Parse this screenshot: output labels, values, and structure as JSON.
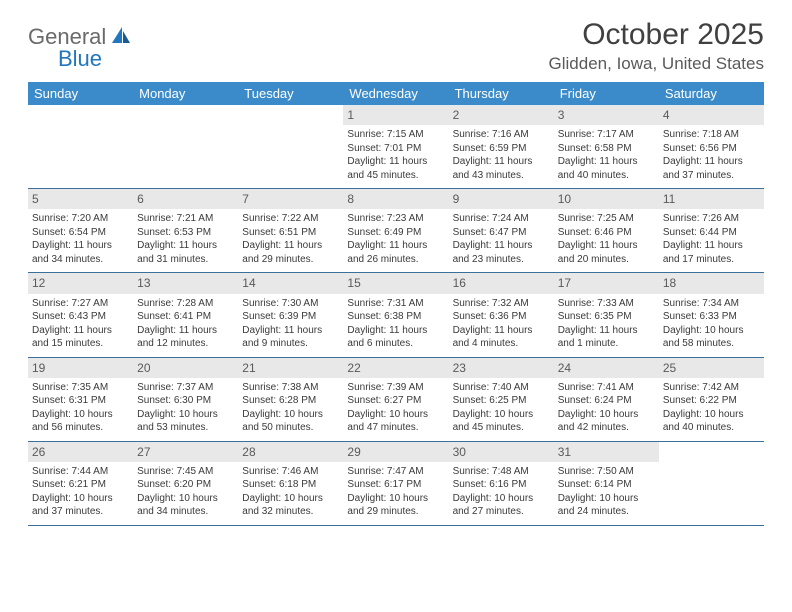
{
  "logo": {
    "general": "General",
    "blue": "Blue"
  },
  "title": "October 2025",
  "location": "Glidden, Iowa, United States",
  "colors": {
    "header_bg": "#3b8bca",
    "header_text": "#ffffff",
    "daynum_bg": "#e8e8e8",
    "daynum_text": "#5a5a5a",
    "border": "#3b6f9c",
    "text": "#3a3a3a",
    "logo_gray": "#6a6a6a",
    "logo_blue": "#2176bd"
  },
  "day_headers": [
    "Sunday",
    "Monday",
    "Tuesday",
    "Wednesday",
    "Thursday",
    "Friday",
    "Saturday"
  ],
  "weeks": [
    [
      {
        "day": "",
        "sunrise": "",
        "sunset": "",
        "daylight": ""
      },
      {
        "day": "",
        "sunrise": "",
        "sunset": "",
        "daylight": ""
      },
      {
        "day": "",
        "sunrise": "",
        "sunset": "",
        "daylight": ""
      },
      {
        "day": "1",
        "sunrise": "Sunrise: 7:15 AM",
        "sunset": "Sunset: 7:01 PM",
        "daylight": "Daylight: 11 hours and 45 minutes."
      },
      {
        "day": "2",
        "sunrise": "Sunrise: 7:16 AM",
        "sunset": "Sunset: 6:59 PM",
        "daylight": "Daylight: 11 hours and 43 minutes."
      },
      {
        "day": "3",
        "sunrise": "Sunrise: 7:17 AM",
        "sunset": "Sunset: 6:58 PM",
        "daylight": "Daylight: 11 hours and 40 minutes."
      },
      {
        "day": "4",
        "sunrise": "Sunrise: 7:18 AM",
        "sunset": "Sunset: 6:56 PM",
        "daylight": "Daylight: 11 hours and 37 minutes."
      }
    ],
    [
      {
        "day": "5",
        "sunrise": "Sunrise: 7:20 AM",
        "sunset": "Sunset: 6:54 PM",
        "daylight": "Daylight: 11 hours and 34 minutes."
      },
      {
        "day": "6",
        "sunrise": "Sunrise: 7:21 AM",
        "sunset": "Sunset: 6:53 PM",
        "daylight": "Daylight: 11 hours and 31 minutes."
      },
      {
        "day": "7",
        "sunrise": "Sunrise: 7:22 AM",
        "sunset": "Sunset: 6:51 PM",
        "daylight": "Daylight: 11 hours and 29 minutes."
      },
      {
        "day": "8",
        "sunrise": "Sunrise: 7:23 AM",
        "sunset": "Sunset: 6:49 PM",
        "daylight": "Daylight: 11 hours and 26 minutes."
      },
      {
        "day": "9",
        "sunrise": "Sunrise: 7:24 AM",
        "sunset": "Sunset: 6:47 PM",
        "daylight": "Daylight: 11 hours and 23 minutes."
      },
      {
        "day": "10",
        "sunrise": "Sunrise: 7:25 AM",
        "sunset": "Sunset: 6:46 PM",
        "daylight": "Daylight: 11 hours and 20 minutes."
      },
      {
        "day": "11",
        "sunrise": "Sunrise: 7:26 AM",
        "sunset": "Sunset: 6:44 PM",
        "daylight": "Daylight: 11 hours and 17 minutes."
      }
    ],
    [
      {
        "day": "12",
        "sunrise": "Sunrise: 7:27 AM",
        "sunset": "Sunset: 6:43 PM",
        "daylight": "Daylight: 11 hours and 15 minutes."
      },
      {
        "day": "13",
        "sunrise": "Sunrise: 7:28 AM",
        "sunset": "Sunset: 6:41 PM",
        "daylight": "Daylight: 11 hours and 12 minutes."
      },
      {
        "day": "14",
        "sunrise": "Sunrise: 7:30 AM",
        "sunset": "Sunset: 6:39 PM",
        "daylight": "Daylight: 11 hours and 9 minutes."
      },
      {
        "day": "15",
        "sunrise": "Sunrise: 7:31 AM",
        "sunset": "Sunset: 6:38 PM",
        "daylight": "Daylight: 11 hours and 6 minutes."
      },
      {
        "day": "16",
        "sunrise": "Sunrise: 7:32 AM",
        "sunset": "Sunset: 6:36 PM",
        "daylight": "Daylight: 11 hours and 4 minutes."
      },
      {
        "day": "17",
        "sunrise": "Sunrise: 7:33 AM",
        "sunset": "Sunset: 6:35 PM",
        "daylight": "Daylight: 11 hours and 1 minute."
      },
      {
        "day": "18",
        "sunrise": "Sunrise: 7:34 AM",
        "sunset": "Sunset: 6:33 PM",
        "daylight": "Daylight: 10 hours and 58 minutes."
      }
    ],
    [
      {
        "day": "19",
        "sunrise": "Sunrise: 7:35 AM",
        "sunset": "Sunset: 6:31 PM",
        "daylight": "Daylight: 10 hours and 56 minutes."
      },
      {
        "day": "20",
        "sunrise": "Sunrise: 7:37 AM",
        "sunset": "Sunset: 6:30 PM",
        "daylight": "Daylight: 10 hours and 53 minutes."
      },
      {
        "day": "21",
        "sunrise": "Sunrise: 7:38 AM",
        "sunset": "Sunset: 6:28 PM",
        "daylight": "Daylight: 10 hours and 50 minutes."
      },
      {
        "day": "22",
        "sunrise": "Sunrise: 7:39 AM",
        "sunset": "Sunset: 6:27 PM",
        "daylight": "Daylight: 10 hours and 47 minutes."
      },
      {
        "day": "23",
        "sunrise": "Sunrise: 7:40 AM",
        "sunset": "Sunset: 6:25 PM",
        "daylight": "Daylight: 10 hours and 45 minutes."
      },
      {
        "day": "24",
        "sunrise": "Sunrise: 7:41 AM",
        "sunset": "Sunset: 6:24 PM",
        "daylight": "Daylight: 10 hours and 42 minutes."
      },
      {
        "day": "25",
        "sunrise": "Sunrise: 7:42 AM",
        "sunset": "Sunset: 6:22 PM",
        "daylight": "Daylight: 10 hours and 40 minutes."
      }
    ],
    [
      {
        "day": "26",
        "sunrise": "Sunrise: 7:44 AM",
        "sunset": "Sunset: 6:21 PM",
        "daylight": "Daylight: 10 hours and 37 minutes."
      },
      {
        "day": "27",
        "sunrise": "Sunrise: 7:45 AM",
        "sunset": "Sunset: 6:20 PM",
        "daylight": "Daylight: 10 hours and 34 minutes."
      },
      {
        "day": "28",
        "sunrise": "Sunrise: 7:46 AM",
        "sunset": "Sunset: 6:18 PM",
        "daylight": "Daylight: 10 hours and 32 minutes."
      },
      {
        "day": "29",
        "sunrise": "Sunrise: 7:47 AM",
        "sunset": "Sunset: 6:17 PM",
        "daylight": "Daylight: 10 hours and 29 minutes."
      },
      {
        "day": "30",
        "sunrise": "Sunrise: 7:48 AM",
        "sunset": "Sunset: 6:16 PM",
        "daylight": "Daylight: 10 hours and 27 minutes."
      },
      {
        "day": "31",
        "sunrise": "Sunrise: 7:50 AM",
        "sunset": "Sunset: 6:14 PM",
        "daylight": "Daylight: 10 hours and 24 minutes."
      },
      {
        "day": "",
        "sunrise": "",
        "sunset": "",
        "daylight": ""
      }
    ]
  ]
}
